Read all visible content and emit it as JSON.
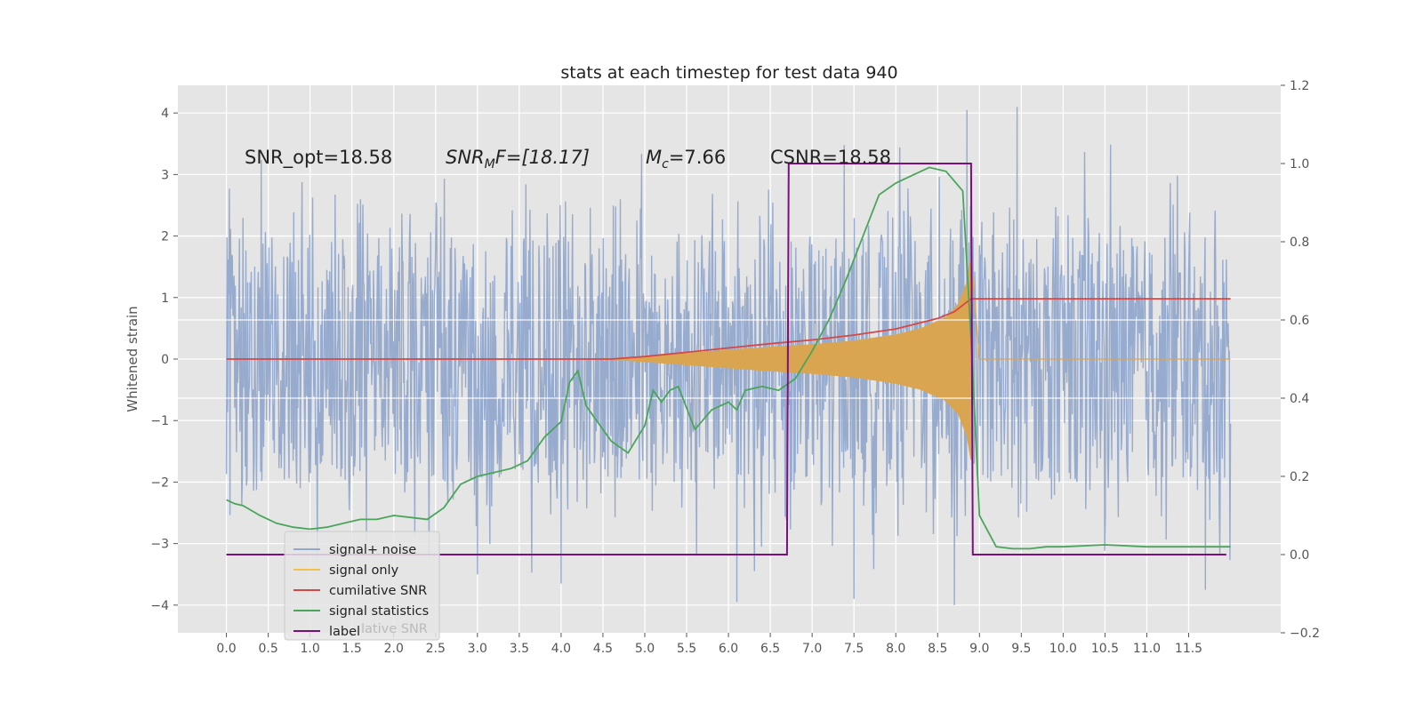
{
  "chart_data": {
    "type": "line",
    "title": "stats at each timestep for test data 940",
    "ylabel": "Whitened strain",
    "ylim": [
      -4.45,
      4.45
    ],
    "y2lim": [
      -0.2,
      1.2
    ],
    "xlim": [
      -0.58,
      12.6
    ],
    "grid": true,
    "xticks": [
      "0.0",
      "0.5",
      "1.0",
      "1.5",
      "2.0",
      "2.5",
      "3.0",
      "3.5",
      "4.0",
      "4.5",
      "5.0",
      "5.5",
      "6.0",
      "6.5",
      "7.0",
      "7.5",
      "8.0",
      "8.5",
      "9.0",
      "9.5",
      "10.0",
      "10.5",
      "11.0",
      "11.5"
    ],
    "yticks": [
      "4",
      "3",
      "2",
      "1",
      "0",
      "−1",
      "−2",
      "−3",
      "−4"
    ],
    "y2ticks": [
      "1.2",
      "1.0",
      "0.8",
      "0.6",
      "0.4",
      "0.2",
      "0.0",
      "−0.2"
    ],
    "annotations": {
      "snr_opt": "SNR_opt=18.58",
      "snr_mf_sym": "SNR",
      "snr_mf_sub": "M",
      "snr_mf_rest": "F=[18.17]",
      "mc_sym": "M",
      "mc_sub": "c",
      "mc_rest": "=7.66",
      "csnr": "CSNR=18.58"
    },
    "legend_position": "lower-left",
    "legend": [
      {
        "label": "signal+ noise",
        "color": "#92a8cd"
      },
      {
        "label": "signal only",
        "color": "#f5c04a"
      },
      {
        "label": "cumilative SNR",
        "color": "#d44848"
      },
      {
        "label": "signal statistics",
        "color": "#4aa55a"
      },
      {
        "label": "label",
        "color": "#7b0f7e"
      }
    ],
    "legend_ghost": "lative SNR",
    "colors": {
      "noise": "#92a8cd",
      "signal": "#daa550",
      "cumulative_snr": "#d44848",
      "statistics": "#4aa55a",
      "label": "#7b0f7e",
      "plot_bg": "#e5e5e5",
      "grid": "#ffffff"
    },
    "series": [
      {
        "name": "signal+ noise",
        "axis": "left",
        "description": "noise band roughly within -2 to 2 with spikes up to about 4.1 and down to about -4.0, x from 0.0 to 12.0",
        "x_range": [
          0.0,
          12.0
        ],
        "y_range": [
          -4.0,
          4.1
        ]
      },
      {
        "name": "signal only",
        "axis": "left",
        "description": "chirp envelope growing from about 4.5, peaking near 8.9, then ~0",
        "x": [
          4.5,
          5.0,
          5.5,
          6.0,
          6.5,
          7.0,
          7.5,
          8.0,
          8.3,
          8.6,
          8.75,
          8.85,
          8.9
        ],
        "envelope": [
          0.0,
          0.05,
          0.1,
          0.15,
          0.2,
          0.24,
          0.3,
          0.4,
          0.5,
          0.68,
          0.9,
          1.25,
          1.65
        ]
      },
      {
        "name": "cumilative SNR",
        "axis": "left",
        "x": [
          0.0,
          4.6,
          5.0,
          5.5,
          6.0,
          6.5,
          7.0,
          7.5,
          8.0,
          8.5,
          8.7,
          8.9,
          12.0
        ],
        "y": [
          0.0,
          0.0,
          0.04,
          0.11,
          0.18,
          0.25,
          0.31,
          0.39,
          0.49,
          0.66,
          0.77,
          0.98,
          0.98
        ]
      },
      {
        "name": "signal statistics",
        "axis": "right",
        "x": [
          0.0,
          0.1,
          0.2,
          0.4,
          0.6,
          0.8,
          1.0,
          1.2,
          1.4,
          1.6,
          1.8,
          2.0,
          2.2,
          2.4,
          2.6,
          2.8,
          3.0,
          3.2,
          3.4,
          3.6,
          3.8,
          4.0,
          4.1,
          4.2,
          4.3,
          4.4,
          4.6,
          4.8,
          5.0,
          5.1,
          5.2,
          5.3,
          5.4,
          5.6,
          5.8,
          6.0,
          6.1,
          6.2,
          6.4,
          6.6,
          6.8,
          7.0,
          7.2,
          7.4,
          7.6,
          7.8,
          8.0,
          8.2,
          8.4,
          8.6,
          8.8,
          8.9,
          9.0,
          9.2,
          9.4,
          9.6,
          9.8,
          10.0,
          10.5,
          11.0,
          11.5,
          12.0
        ],
        "y": [
          0.14,
          0.13,
          0.125,
          0.1,
          0.08,
          0.07,
          0.065,
          0.07,
          0.08,
          0.09,
          0.09,
          0.1,
          0.095,
          0.09,
          0.12,
          0.18,
          0.2,
          0.21,
          0.22,
          0.24,
          0.3,
          0.34,
          0.44,
          0.47,
          0.38,
          0.35,
          0.29,
          0.26,
          0.33,
          0.42,
          0.39,
          0.42,
          0.43,
          0.32,
          0.37,
          0.39,
          0.37,
          0.42,
          0.43,
          0.42,
          0.45,
          0.52,
          0.6,
          0.7,
          0.81,
          0.92,
          0.95,
          0.97,
          0.99,
          0.98,
          0.93,
          0.55,
          0.1,
          0.02,
          0.015,
          0.015,
          0.02,
          0.02,
          0.025,
          0.02,
          0.02,
          0.02
        ]
      },
      {
        "name": "label",
        "axis": "right",
        "x": [
          0.0,
          6.7,
          6.72,
          8.9,
          8.92,
          11.95
        ],
        "y": [
          0.0,
          0.0,
          1.0,
          1.0,
          0.0,
          0.0
        ]
      }
    ]
  }
}
